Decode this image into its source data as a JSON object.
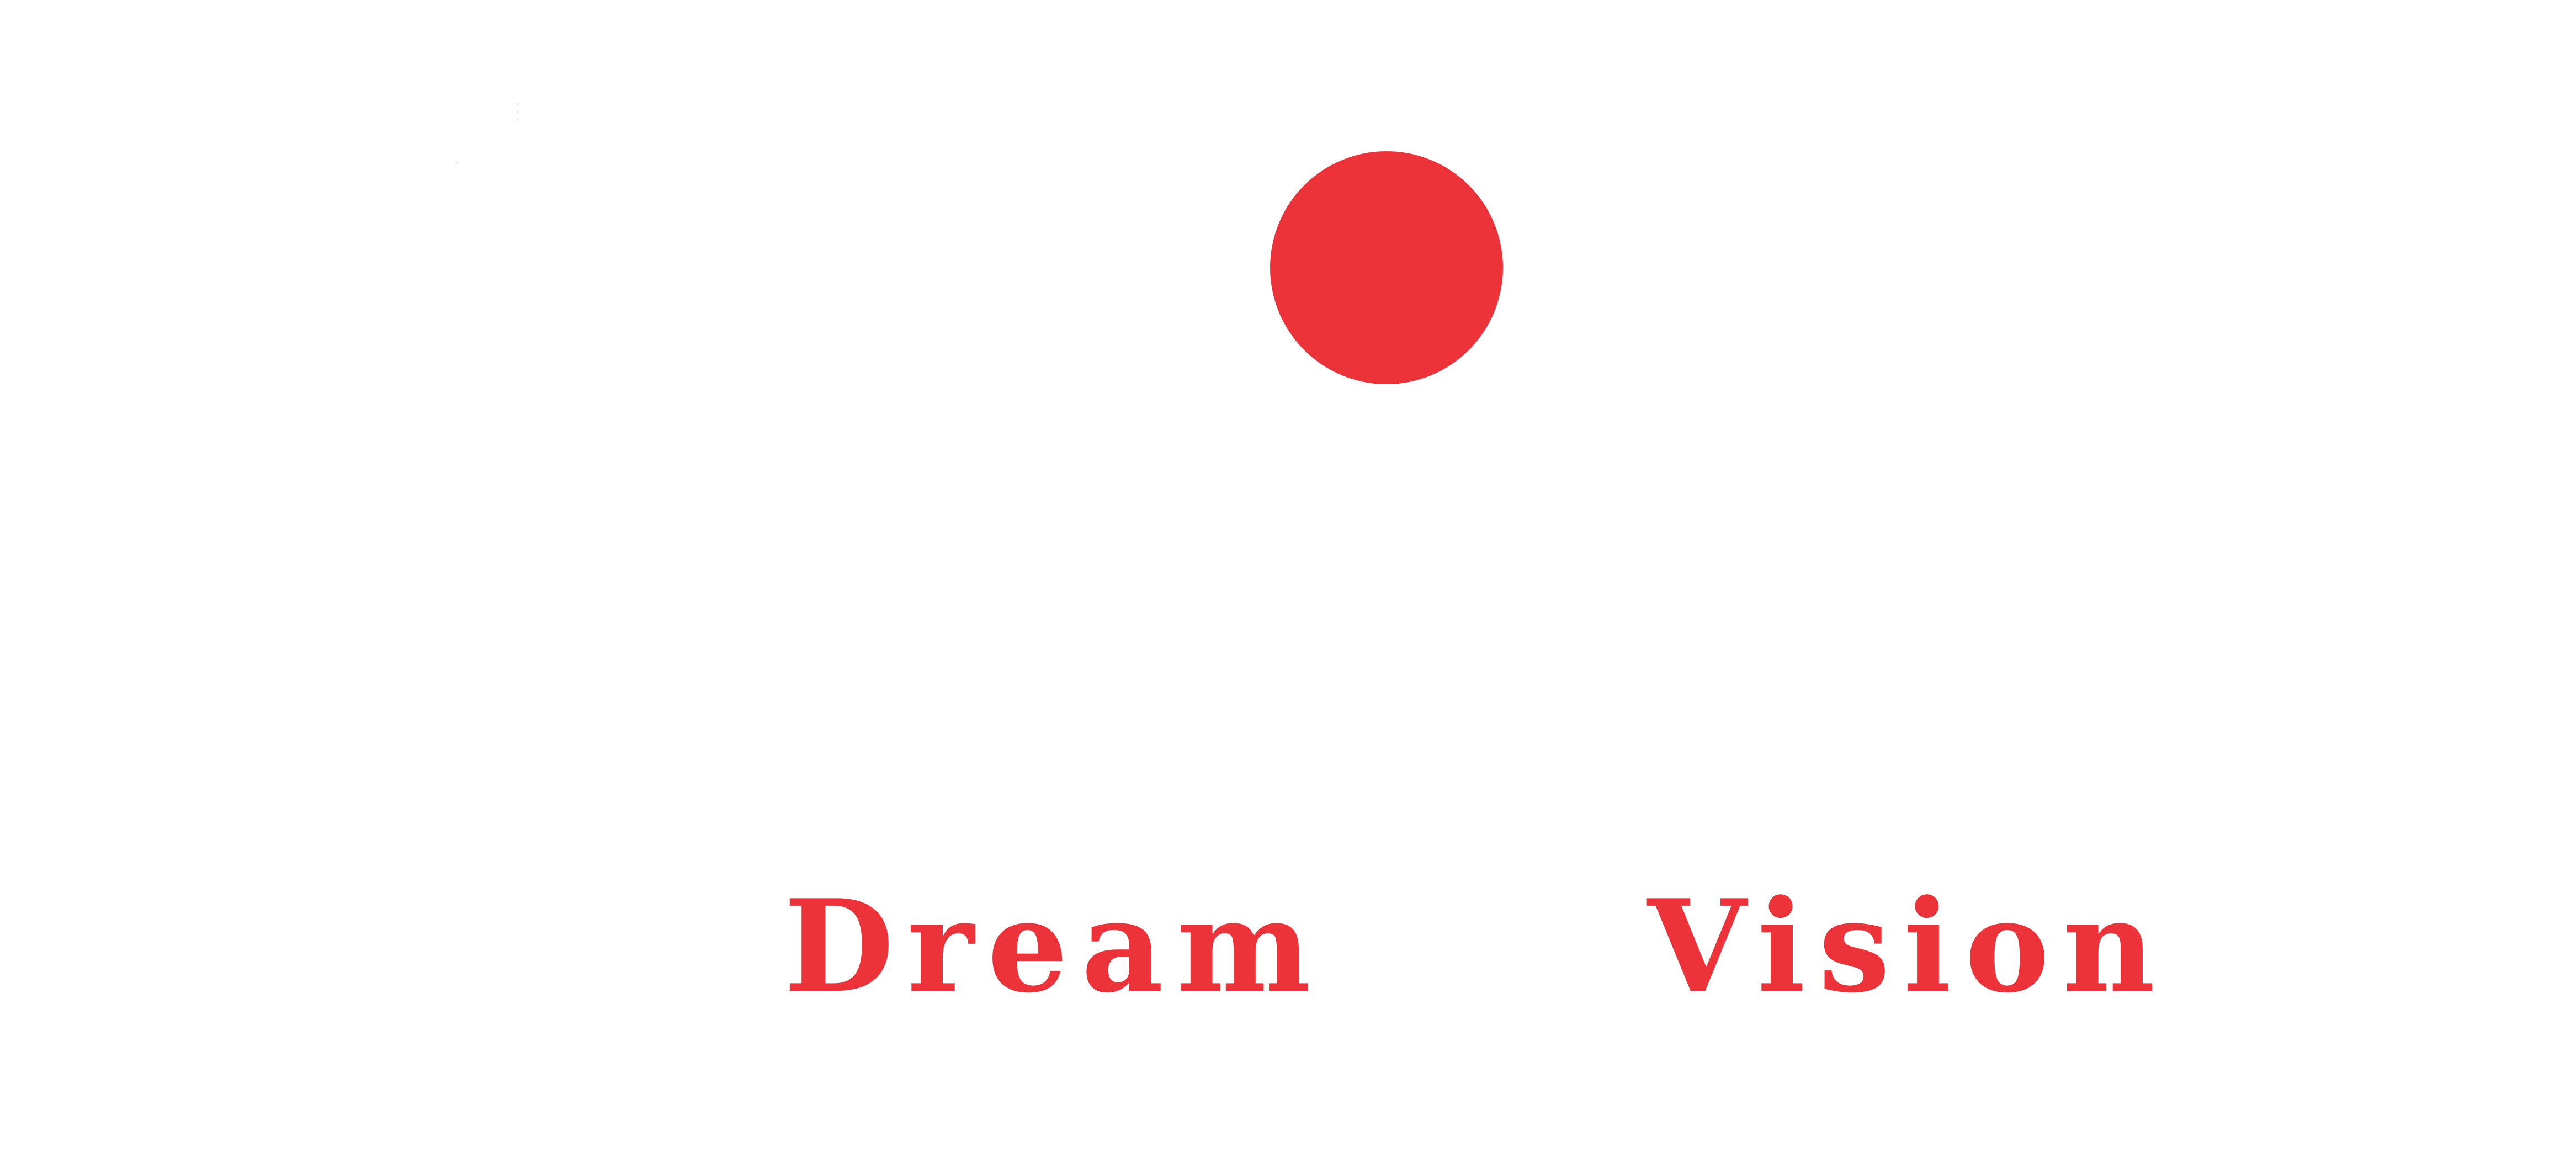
{
  "logo": {
    "words": {
      "first": "Dream",
      "second": "Vision"
    },
    "dot_shape": "circle",
    "accent_color": "#ec3339",
    "background_color": "#ffffff"
  }
}
